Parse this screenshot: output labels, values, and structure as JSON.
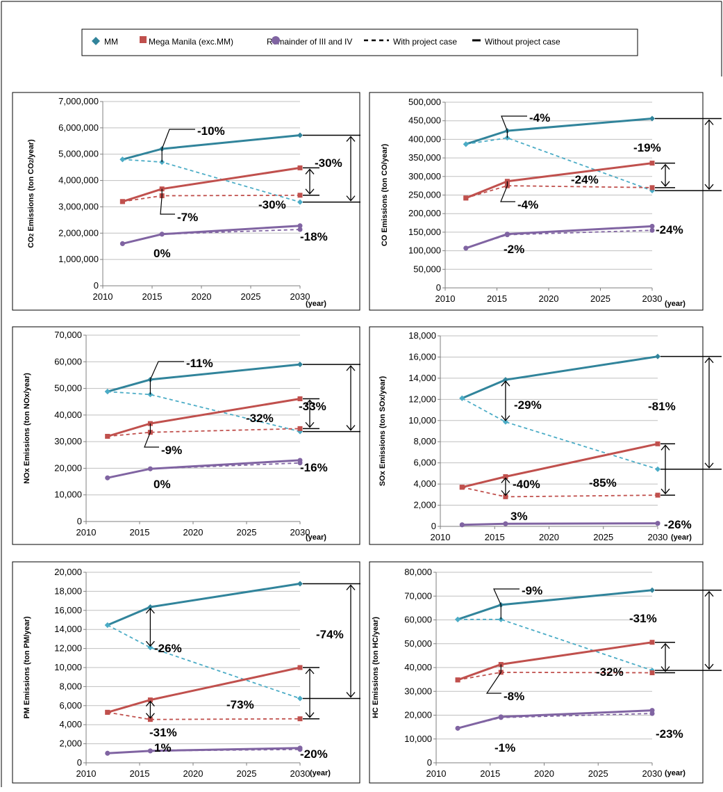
{
  "legend": {
    "mm": "MM",
    "mega": "Mega Manila (exc.MM)",
    "rem": "Remainder of III and IV",
    "with": "With project case",
    "without": "Without project case"
  },
  "colors": {
    "mm": "#31849b",
    "mega": "#c0504d",
    "rem": "#8064a2",
    "mm_dash": "#4bacc6",
    "axis": "#7f7f7f",
    "grid": "#bfbfbf"
  },
  "chart_data": [
    {
      "type": "line",
      "ylabel_main": "CO",
      "ylabel_sub": "2",
      "ylabel_rest": " Emissions (ton CO",
      "ylabel_sub2": "2",
      "ylabel_end": "/year)",
      "xunit": "(year)",
      "ylim": [
        0,
        7000000
      ],
      "ystep": 1000000,
      "xlim": [
        2010,
        2030
      ],
      "xticks": [
        "2010",
        "2015",
        "2020",
        "2025",
        "2030"
      ],
      "yticks": [
        "0",
        "1,000,000",
        "2,000,000",
        "3,000,000",
        "4,000,000",
        "5,000,000",
        "6,000,000",
        "7,000,000"
      ],
      "x": [
        2012,
        2016,
        2030
      ],
      "series": [
        {
          "key": "mm",
          "case": "without",
          "values": [
            4800000,
            5200000,
            5720000
          ]
        },
        {
          "key": "mm",
          "case": "with",
          "values": [
            4800000,
            4700000,
            3180000
          ]
        },
        {
          "key": "mega",
          "case": "without",
          "values": [
            3200000,
            3680000,
            4480000
          ]
        },
        {
          "key": "mega",
          "case": "with",
          "values": [
            3200000,
            3420000,
            3440000
          ]
        },
        {
          "key": "rem",
          "case": "without",
          "values": [
            1600000,
            1960000,
            2280000
          ]
        },
        {
          "key": "rem",
          "case": "with",
          "values": [
            1600000,
            1960000,
            2140000
          ]
        }
      ],
      "annotations": [
        "-10%",
        "-30%",
        "-30%",
        "-7%",
        "0%",
        "-18%"
      ]
    },
    {
      "type": "line",
      "ylabel": "CO Emissions (ton CO/year)",
      "xunit": "(year)",
      "ylim": [
        0,
        500000
      ],
      "ystep": 50000,
      "xlim": [
        2010,
        2030
      ],
      "xticks": [
        "2010",
        "2015",
        "2020",
        "2025",
        "2030"
      ],
      "yticks": [
        "0",
        "50,000",
        "100,000",
        "150,000",
        "200,000",
        "250,000",
        "300,000",
        "350,000",
        "400,000",
        "450,000",
        "500,000"
      ],
      "x": [
        2012,
        2016,
        2030
      ],
      "series": [
        {
          "key": "mm",
          "case": "without",
          "values": [
            387000,
            423000,
            456000
          ]
        },
        {
          "key": "mm",
          "case": "with",
          "values": [
            387000,
            404000,
            262000
          ]
        },
        {
          "key": "mega",
          "case": "without",
          "values": [
            242000,
            287000,
            336000
          ]
        },
        {
          "key": "mega",
          "case": "with",
          "values": [
            242000,
            275000,
            270000
          ]
        },
        {
          "key": "rem",
          "case": "without",
          "values": [
            107000,
            145000,
            166000
          ]
        },
        {
          "key": "rem",
          "case": "with",
          "values": [
            107000,
            143000,
            155000
          ]
        }
      ],
      "annotations": [
        "-4%",
        "-19%",
        "-24%",
        "-4%",
        "-2%",
        "-24%"
      ]
    },
    {
      "type": "line",
      "ylabel": "NOx  Emissions (ton NOx/year)",
      "xunit": "(year)",
      "ylim": [
        0,
        70000
      ],
      "ystep": 10000,
      "xlim": [
        2010,
        2030
      ],
      "xticks": [
        "2010",
        "2015",
        "2020",
        "2025",
        "2030"
      ],
      "yticks": [
        "0",
        "10,000",
        "20,000",
        "30,000",
        "40,000",
        "50,000",
        "60,000",
        "70,000"
      ],
      "x": [
        2012,
        2016,
        2030
      ],
      "series": [
        {
          "key": "mm",
          "case": "without",
          "values": [
            48800,
            53300,
            59000
          ]
        },
        {
          "key": "mm",
          "case": "with",
          "values": [
            48800,
            47700,
            33800
          ]
        },
        {
          "key": "mega",
          "case": "without",
          "values": [
            32000,
            36800,
            46100
          ]
        },
        {
          "key": "mega",
          "case": "with",
          "values": [
            32000,
            33500,
            34900
          ]
        },
        {
          "key": "rem",
          "case": "without",
          "values": [
            16400,
            19800,
            23000
          ]
        },
        {
          "key": "rem",
          "case": "with",
          "values": [
            16400,
            19800,
            22000
          ]
        }
      ],
      "annotations": [
        "-11%",
        "-33%",
        "-32%",
        "-9%",
        "0%",
        "-16%"
      ]
    },
    {
      "type": "line",
      "ylabel": "SOx  Emissions (ton SOx/year)",
      "xunit": "(year)",
      "ylim": [
        0,
        18000
      ],
      "ystep": 2000,
      "xlim": [
        2010,
        2030
      ],
      "xticks": [
        "2010",
        "2015",
        "2020",
        "2025",
        "2030"
      ],
      "yticks": [
        "0",
        "2,000",
        "4,000",
        "6,000",
        "8,000",
        "10,000",
        "12,000",
        "14,000",
        "16,000",
        "18,000"
      ],
      "x": [
        2012,
        2016,
        2030
      ],
      "series": [
        {
          "key": "mm",
          "case": "without",
          "values": [
            12100,
            13850,
            16050
          ]
        },
        {
          "key": "mm",
          "case": "with",
          "values": [
            12100,
            9870,
            5400
          ]
        },
        {
          "key": "mega",
          "case": "without",
          "values": [
            3700,
            4700,
            7800
          ]
        },
        {
          "key": "mega",
          "case": "with",
          "values": [
            3700,
            2800,
            2950
          ]
        },
        {
          "key": "rem",
          "case": "without",
          "values": [
            150,
            250,
            290
          ]
        },
        {
          "key": "rem",
          "case": "with",
          "values": [
            150,
            250,
            280
          ]
        }
      ],
      "annotations": [
        "-29%",
        "-81%",
        "-40%",
        "-85%",
        "3%",
        "-26%"
      ]
    },
    {
      "type": "line",
      "ylabel": "PM  Emissions (ton PM/year)",
      "xunit": "(year)",
      "ylim": [
        0,
        20000
      ],
      "ystep": 2000,
      "xlim": [
        2010,
        2030
      ],
      "xticks": [
        "2010",
        "2015",
        "2020",
        "2025",
        "2030"
      ],
      "yticks": [
        "0",
        "2,000",
        "4,000",
        "6,000",
        "8,000",
        "10,000",
        "12,000",
        "14,000",
        "16,000",
        "18,000",
        "20,000"
      ],
      "x": [
        2012,
        2016,
        2030
      ],
      "series": [
        {
          "key": "mm",
          "case": "without",
          "values": [
            14450,
            16350,
            18800
          ]
        },
        {
          "key": "mm",
          "case": "with",
          "values": [
            14450,
            12100,
            6750
          ]
        },
        {
          "key": "mega",
          "case": "without",
          "values": [
            5300,
            6600,
            10000
          ]
        },
        {
          "key": "mega",
          "case": "with",
          "values": [
            5300,
            4550,
            4620
          ]
        },
        {
          "key": "rem",
          "case": "without",
          "values": [
            1000,
            1250,
            1550
          ]
        },
        {
          "key": "rem",
          "case": "with",
          "values": [
            1000,
            1250,
            1400
          ]
        }
      ],
      "annotations": [
        "-26%",
        "-74%",
        "-73%",
        "-31%",
        "1%",
        "-20%"
      ]
    },
    {
      "type": "line",
      "ylabel": "HC  Emissions (ton HC/year)",
      "xunit": "(year)",
      "ylim": [
        0,
        80000
      ],
      "ystep": 10000,
      "xlim": [
        2010,
        2030
      ],
      "xticks": [
        "2010",
        "2015",
        "2020",
        "2025",
        "2030"
      ],
      "yticks": [
        "0",
        "10,000",
        "20,000",
        "30,000",
        "40,000",
        "50,000",
        "60,000",
        "70,000",
        "80,000"
      ],
      "x": [
        2012,
        2016,
        2030
      ],
      "series": [
        {
          "key": "mm",
          "case": "without",
          "values": [
            60200,
            66300,
            72500
          ]
        },
        {
          "key": "mm",
          "case": "with",
          "values": [
            60200,
            60200,
            38800
          ]
        },
        {
          "key": "mega",
          "case": "without",
          "values": [
            34800,
            41300,
            50600
          ]
        },
        {
          "key": "mega",
          "case": "with",
          "values": [
            34800,
            38000,
            37800
          ]
        },
        {
          "key": "rem",
          "case": "without",
          "values": [
            14500,
            19300,
            22000
          ]
        },
        {
          "key": "rem",
          "case": "with",
          "values": [
            14500,
            19000,
            20700
          ]
        }
      ],
      "annotations": [
        "-9%",
        "-31%",
        "-32%",
        "-8%",
        "-1%",
        "-23%"
      ]
    }
  ]
}
